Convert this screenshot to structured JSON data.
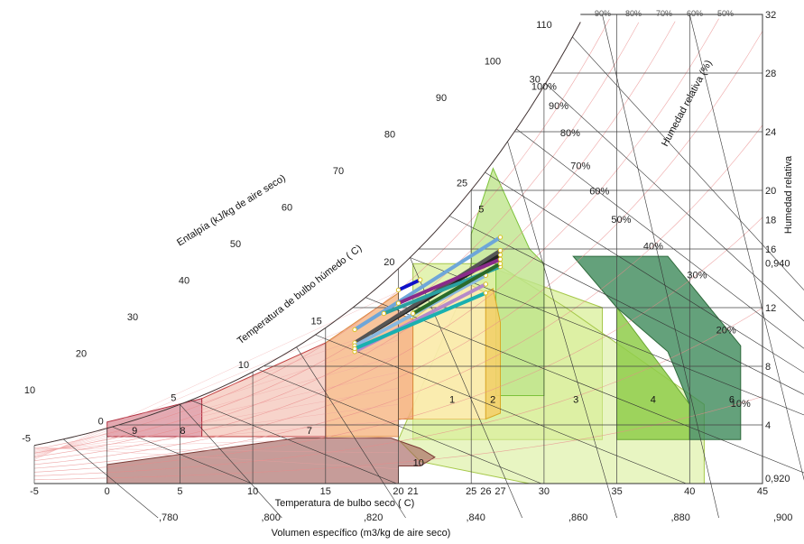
{
  "chart_data": {
    "type": "psychrometric",
    "xlabel": "Temperatura de bulbo seco ( C)",
    "ylabel_right": "Humedad relativa",
    "rh_label": "Humedad relativa (%)",
    "enthalpy_label": "Entalpía (kJ/kg de aire seco)",
    "wetbulb_label": "Temperatura de bulbo húmedo ( C)",
    "volume_label": "Volumen específico (m3/kg de aire seco)",
    "xlim": [
      -5,
      45
    ],
    "ylim": [
      0,
      32
    ],
    "x_ticks": [
      "-5",
      "0",
      "5",
      "10",
      "15",
      "20",
      "21",
      "25",
      "26",
      "27",
      "30",
      "35",
      "40",
      "45"
    ],
    "y_ticks": [
      "4",
      "8",
      "12",
      "16",
      "18",
      "20",
      "24",
      "28",
      "32"
    ],
    "enthalpy_ticks": [
      "10",
      "20",
      "30",
      "40",
      "50",
      "60",
      "70",
      "80",
      "90",
      "100",
      "110"
    ],
    "wetbulb_ticks": [
      "-5",
      "0",
      "5",
      "10",
      "15",
      "20",
      "25",
      "30"
    ],
    "rh_curve_labels": [
      "100%",
      "90%",
      "80%",
      "70%",
      "60%",
      "50%",
      "40%",
      "30%",
      "20%",
      "10%"
    ],
    "rh_top_labels": [
      "90%",
      "80%",
      "70%",
      "60%",
      "50%"
    ],
    "volume_ticks": [
      ",780",
      ",800",
      ",820",
      ",840",
      ",860",
      ",880",
      ",900"
    ],
    "right_volume_ticks": [
      "0,940",
      "0,920"
    ],
    "zones": [
      {
        "id": "1",
        "color": "#fdebb0"
      },
      {
        "id": "2",
        "color": "#f4cf6a"
      },
      {
        "id": "3",
        "color": "#d9ef9a"
      },
      {
        "id": "4",
        "color": "#8fcc4a"
      },
      {
        "id": "5",
        "color": "#bfe58c"
      },
      {
        "id": "6",
        "color": "#3d8a5a"
      },
      {
        "id": "7",
        "color": "#f6b07a"
      },
      {
        "id": "8",
        "color": "#f2b7a8"
      },
      {
        "id": "9",
        "color": "#d98d99"
      },
      {
        "id": "10",
        "color": "#a05a55"
      }
    ],
    "process_lines": [
      {
        "t1": 17,
        "w1": 10.5,
        "t2": 27,
        "w2": 16.8,
        "color": "#6ea6d9"
      },
      {
        "t1": 18,
        "w1": 10.2,
        "t2": 27,
        "w2": 15.6,
        "color": "#222222"
      },
      {
        "t1": 17,
        "w1": 9.6,
        "t2": 27,
        "w2": 15.9,
        "color": "#555555"
      },
      {
        "t1": 20,
        "w1": 12.3,
        "t2": 27,
        "w2": 15.3,
        "color": "#8a2a8a"
      },
      {
        "t1": 19,
        "w1": 11.6,
        "t2": 27,
        "w2": 14.8,
        "color": "#2aa0a0"
      },
      {
        "t1": 17,
        "w1": 9.4,
        "t2": 26,
        "w2": 14.2,
        "color": "#88b8e0"
      },
      {
        "t1": 17,
        "w1": 9.0,
        "t2": 26,
        "w2": 13.6,
        "color": "#b58ac9"
      },
      {
        "t1": 20,
        "w1": 13.2,
        "t2": 21.5,
        "w2": 13.9,
        "color": "#1010c8"
      },
      {
        "t1": 21,
        "w1": 11.6,
        "t2": 27,
        "w2": 15.0,
        "color": "#2a6b2a"
      },
      {
        "t1": 17,
        "w1": 9.2,
        "t2": 26,
        "w2": 13.0,
        "color": "#1ab0b0"
      }
    ]
  }
}
